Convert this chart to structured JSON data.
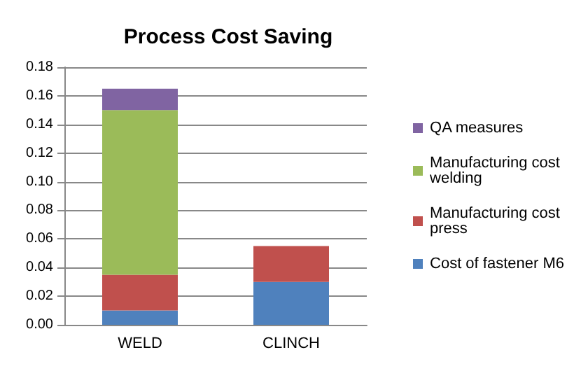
{
  "chart_data": {
    "type": "bar",
    "title": "Process Cost Saving",
    "categories": [
      "WELD",
      "CLINCH"
    ],
    "stacked": true,
    "series": [
      {
        "name": "Cost of fastener M6",
        "color": "#4f81bd",
        "values": [
          0.01,
          0.03
        ]
      },
      {
        "name": "Manufacturing cost press",
        "color": "#c0504d",
        "values": [
          0.025,
          0.025
        ]
      },
      {
        "name": "Manufacturing cost welding",
        "color": "#9bbb59",
        "values": [
          0.115,
          0
        ]
      },
      {
        "name": "QA measures",
        "color": "#8064a2",
        "values": [
          0.015,
          0
        ]
      }
    ],
    "ylim": [
      0,
      0.18
    ],
    "yticks": [
      {
        "value": 0,
        "label": "0.00"
      },
      0.02,
      0.04,
      0.06,
      0.08,
      {
        "value": 0.1,
        "label": "0.10"
      },
      0.12,
      0.14,
      0.16,
      0.18
    ],
    "grid": "y",
    "legend": "right"
  }
}
